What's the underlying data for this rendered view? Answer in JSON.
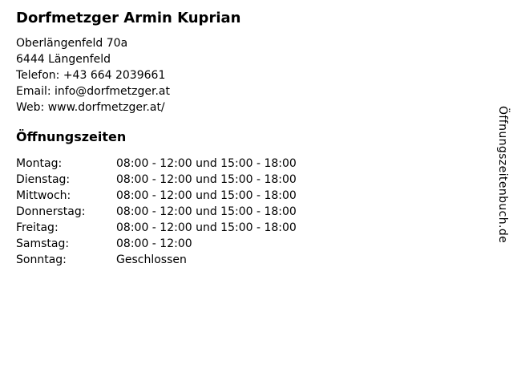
{
  "page": {
    "background_color": "#ffffff",
    "text_color": "#000000"
  },
  "business": {
    "name": "Dorfmetzger Armin Kuprian"
  },
  "contact": {
    "street": "Oberlängenfeld 70a",
    "city": "6444 Längenfeld",
    "phone_label": "Telefon:",
    "phone": "+43 664 2039661",
    "email_label": "Email:",
    "email": "info@dorfmetzger.at",
    "web_label": "Web:",
    "web": "www.dorfmetzger.at/"
  },
  "hours": {
    "heading": "Öffnungszeiten",
    "rows": [
      {
        "day": "Montag:",
        "time": "08:00 - 12:00 und 15:00 - 18:00"
      },
      {
        "day": "Dienstag:",
        "time": "08:00 - 12:00 und 15:00 - 18:00"
      },
      {
        "day": "Mittwoch:",
        "time": "08:00 - 12:00 und 15:00 - 18:00"
      },
      {
        "day": "Donnerstag:",
        "time": "08:00 - 12:00 und 15:00 - 18:00"
      },
      {
        "day": "Freitag:",
        "time": "08:00 - 12:00 und 15:00 - 18:00"
      },
      {
        "day": "Samstag:",
        "time": "08:00 - 12:00"
      },
      {
        "day": "Sonntag:",
        "time": "Geschlossen"
      }
    ]
  },
  "watermark": {
    "text": "Öffnungszeitenbuch.de"
  }
}
